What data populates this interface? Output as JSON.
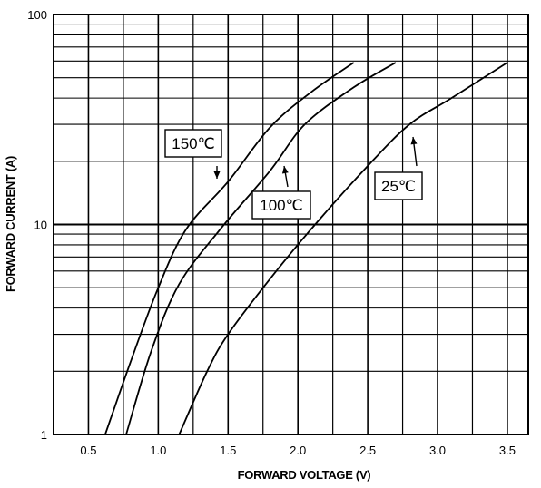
{
  "chart_data": {
    "type": "line",
    "xlabel": "FORWARD VOLTAGE (V)",
    "ylabel": "FORWARD CURRENT (A)",
    "xlim": [
      0.25,
      3.65
    ],
    "ylim": [
      1,
      100
    ],
    "yscale": "log",
    "grid": true,
    "x_ticks": [
      "0.5",
      "1.0",
      "1.5",
      "2.0",
      "2.5",
      "3.0",
      "3.5"
    ],
    "y_ticks": [
      "1",
      "10",
      "100"
    ],
    "series": [
      {
        "name": "150℃",
        "points": [
          [
            0.62,
            1
          ],
          [
            0.8,
            2.2
          ],
          [
            1.0,
            5.0
          ],
          [
            1.2,
            9.5
          ],
          [
            1.5,
            16
          ],
          [
            1.8,
            29
          ],
          [
            2.1,
            43
          ],
          [
            2.4,
            59
          ]
        ]
      },
      {
        "name": "100℃",
        "points": [
          [
            0.77,
            1
          ],
          [
            0.95,
            2.5
          ],
          [
            1.15,
            5.2
          ],
          [
            1.45,
            9.6
          ],
          [
            1.8,
            18
          ],
          [
            2.05,
            30
          ],
          [
            2.4,
            45
          ],
          [
            2.7,
            59
          ]
        ]
      },
      {
        "name": "25℃",
        "points": [
          [
            1.15,
            1
          ],
          [
            1.35,
            2
          ],
          [
            1.5,
            3
          ],
          [
            1.8,
            5.5
          ],
          [
            2.1,
            9.6
          ],
          [
            2.5,
            19
          ],
          [
            2.8,
            30
          ],
          [
            3.1,
            40
          ],
          [
            3.5,
            59
          ]
        ]
      }
    ],
    "annotations": [
      {
        "text": "150℃",
        "series": 0
      },
      {
        "text": "100℃",
        "series": 1
      },
      {
        "text": "25℃",
        "series": 2
      }
    ]
  }
}
